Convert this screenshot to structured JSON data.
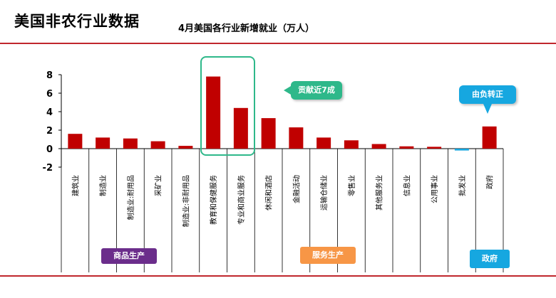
{
  "slide": {
    "title": "美国非农行业数据"
  },
  "groups": {
    "goods": "商品生产",
    "service": "服务生产",
    "gov": "政府"
  },
  "callouts": {
    "contrib": "贡献近7成",
    "neg2pos": "由负转正"
  },
  "colors": {
    "bar": "#c00000",
    "negative_bar": "#16a7e0",
    "rule": "#c0272d",
    "highlight": "#2eb88a"
  },
  "chart_data": {
    "type": "bar",
    "title": "4月美国各行业新增就业（万人）",
    "categories": [
      "建筑业",
      "制造业",
      "制造业:耐用品",
      "采矿业",
      "制造业:非耐用品",
      "教育和保健服务",
      "专业和商业服务",
      "休闲和酒店",
      "金融活动",
      "运输仓储业",
      "零售业",
      "其他服务业",
      "信息业",
      "公用事业",
      "批发业",
      "政府"
    ],
    "values": [
      1.6,
      1.2,
      1.1,
      0.8,
      0.3,
      7.8,
      4.4,
      3.3,
      2.3,
      1.2,
      0.9,
      0.5,
      0.25,
      0.2,
      -0.2,
      2.4
    ],
    "yticks": [
      8,
      6,
      4,
      2,
      0,
      -2
    ],
    "ylim": [
      -2,
      8
    ],
    "grid": false,
    "legend": "none"
  }
}
